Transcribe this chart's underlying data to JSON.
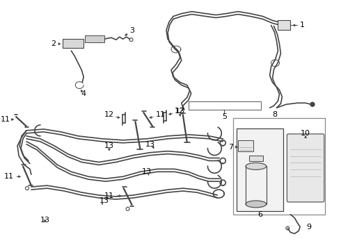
{
  "bg_color": "#ffffff",
  "line_color": "#444444",
  "label_color": "#000000",
  "dpi": 100,
  "figw": 4.9,
  "figh": 3.6
}
